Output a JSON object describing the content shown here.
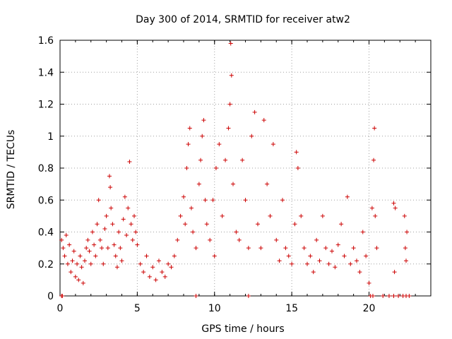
{
  "chart_data": {
    "type": "scatter",
    "title": "Day 300 of 2014, SRMTID for receiver atw2",
    "xlabel": "GPS time / hours",
    "ylabel": "SRMTID / TECUs",
    "xlim": [
      0,
      24
    ],
    "ylim": [
      0,
      1.6
    ],
    "x_ticks": [
      0,
      5,
      10,
      15,
      20
    ],
    "y_ticks": [
      0,
      0.2,
      0.4,
      0.6,
      0.8,
      1,
      1.2,
      1.4,
      1.6
    ],
    "x_tick_labels": [
      "0",
      "5",
      "10",
      "15",
      "20"
    ],
    "y_tick_labels": [
      "0",
      "0.2",
      "0.4",
      "0.6",
      "0.8",
      "1",
      "1.2",
      "1.4",
      "1.6"
    ],
    "grid": true,
    "marker": "+",
    "color": "#cc0000",
    "series": [
      {
        "name": "SRMTID",
        "points": [
          [
            0.1,
            0.35
          ],
          [
            0.2,
            0.3
          ],
          [
            0.3,
            0.25
          ],
          [
            0.4,
            0.38
          ],
          [
            0.5,
            0.2
          ],
          [
            0.6,
            0.32
          ],
          [
            0.7,
            0.15
          ],
          [
            0.8,
            0.22
          ],
          [
            0.9,
            0.28
          ],
          [
            1.0,
            0.12
          ],
          [
            1.1,
            0.2
          ],
          [
            1.2,
            0.1
          ],
          [
            1.3,
            0.25
          ],
          [
            1.4,
            0.18
          ],
          [
            1.5,
            0.08
          ],
          [
            1.6,
            0.22
          ],
          [
            1.7,
            0.3
          ],
          [
            1.8,
            0.35
          ],
          [
            1.9,
            0.28
          ],
          [
            2.0,
            0.2
          ],
          [
            2.1,
            0.4
          ],
          [
            2.2,
            0.32
          ],
          [
            2.3,
            0.25
          ],
          [
            2.4,
            0.45
          ],
          [
            2.5,
            0.6
          ],
          [
            2.6,
            0.35
          ],
          [
            2.7,
            0.3
          ],
          [
            2.8,
            0.2
          ],
          [
            2.9,
            0.42
          ],
          [
            3.0,
            0.5
          ],
          [
            3.1,
            0.3
          ],
          [
            3.2,
            0.75
          ],
          [
            3.25,
            0.68
          ],
          [
            3.3,
            0.55
          ],
          [
            3.4,
            0.45
          ],
          [
            3.5,
            0.32
          ],
          [
            3.6,
            0.25
          ],
          [
            3.7,
            0.18
          ],
          [
            3.8,
            0.4
          ],
          [
            3.9,
            0.3
          ],
          [
            4.0,
            0.22
          ],
          [
            4.1,
            0.48
          ],
          [
            4.2,
            0.62
          ],
          [
            4.3,
            0.38
          ],
          [
            4.4,
            0.55
          ],
          [
            4.5,
            0.84
          ],
          [
            4.6,
            0.45
          ],
          [
            4.7,
            0.35
          ],
          [
            4.8,
            0.5
          ],
          [
            4.9,
            0.4
          ],
          [
            5.0,
            0.32
          ],
          [
            5.2,
            0.2
          ],
          [
            5.4,
            0.15
          ],
          [
            5.6,
            0.25
          ],
          [
            5.8,
            0.12
          ],
          [
            6.0,
            0.18
          ],
          [
            6.2,
            0.1
          ],
          [
            6.4,
            0.22
          ],
          [
            6.6,
            0.15
          ],
          [
            6.8,
            0.12
          ],
          [
            7.0,
            0.2
          ],
          [
            7.2,
            0.18
          ],
          [
            7.4,
            0.25
          ],
          [
            7.6,
            0.35
          ],
          [
            7.8,
            0.5
          ],
          [
            8.0,
            0.62
          ],
          [
            8.1,
            0.45
          ],
          [
            8.2,
            0.8
          ],
          [
            8.3,
            0.95
          ],
          [
            8.4,
            1.05
          ],
          [
            8.5,
            0.55
          ],
          [
            8.6,
            0.4
          ],
          [
            8.8,
            0.3
          ],
          [
            9.0,
            0.7
          ],
          [
            9.1,
            0.85
          ],
          [
            9.2,
            1.0
          ],
          [
            9.3,
            1.1
          ],
          [
            9.4,
            0.6
          ],
          [
            9.5,
            0.45
          ],
          [
            9.7,
            0.35
          ],
          [
            9.9,
            0.6
          ],
          [
            10.0,
            0.25
          ],
          [
            10.1,
            0.8
          ],
          [
            10.3,
            0.95
          ],
          [
            10.5,
            0.5
          ],
          [
            10.7,
            0.85
          ],
          [
            10.9,
            1.05
          ],
          [
            11.0,
            1.2
          ],
          [
            11.05,
            1.58
          ],
          [
            11.1,
            1.38
          ],
          [
            11.2,
            0.7
          ],
          [
            11.4,
            0.4
          ],
          [
            11.6,
            0.35
          ],
          [
            11.8,
            0.85
          ],
          [
            12.0,
            0.6
          ],
          [
            12.2,
            0.3
          ],
          [
            12.4,
            1.0
          ],
          [
            12.6,
            1.15
          ],
          [
            12.8,
            0.45
          ],
          [
            13.0,
            0.3
          ],
          [
            13.2,
            1.1
          ],
          [
            13.4,
            0.7
          ],
          [
            13.6,
            0.5
          ],
          [
            13.8,
            0.95
          ],
          [
            14.0,
            0.35
          ],
          [
            14.2,
            0.22
          ],
          [
            14.4,
            0.6
          ],
          [
            14.6,
            0.3
          ],
          [
            14.8,
            0.25
          ],
          [
            15.0,
            0.2
          ],
          [
            15.2,
            0.45
          ],
          [
            15.3,
            0.9
          ],
          [
            15.4,
            0.8
          ],
          [
            15.6,
            0.5
          ],
          [
            15.8,
            0.3
          ],
          [
            16.0,
            0.2
          ],
          [
            16.2,
            0.25
          ],
          [
            16.4,
            0.15
          ],
          [
            16.6,
            0.35
          ],
          [
            16.8,
            0.22
          ],
          [
            17.0,
            0.5
          ],
          [
            17.2,
            0.3
          ],
          [
            17.4,
            0.2
          ],
          [
            17.6,
            0.28
          ],
          [
            17.8,
            0.18
          ],
          [
            18.0,
            0.32
          ],
          [
            18.2,
            0.45
          ],
          [
            18.4,
            0.25
          ],
          [
            18.6,
            0.62
          ],
          [
            18.8,
            0.2
          ],
          [
            19.0,
            0.3
          ],
          [
            19.2,
            0.22
          ],
          [
            19.4,
            0.15
          ],
          [
            19.6,
            0.4
          ],
          [
            19.8,
            0.25
          ],
          [
            20.0,
            0.08
          ],
          [
            20.2,
            0.55
          ],
          [
            20.3,
            0.85
          ],
          [
            20.35,
            1.05
          ],
          [
            20.4,
            0.5
          ],
          [
            20.5,
            0.3
          ],
          [
            21.6,
            0.58
          ],
          [
            21.7,
            0.55
          ],
          [
            21.65,
            0.15
          ],
          [
            22.3,
            0.5
          ],
          [
            22.35,
            0.3
          ],
          [
            22.4,
            0.22
          ],
          [
            22.45,
            0.4
          ],
          [
            0.1,
            0
          ],
          [
            0.15,
            0
          ],
          [
            8.8,
            0
          ],
          [
            12.2,
            0
          ],
          [
            20.1,
            0
          ],
          [
            20.25,
            0
          ],
          [
            20.9,
            0
          ],
          [
            21.3,
            0
          ],
          [
            21.6,
            0
          ],
          [
            21.9,
            0
          ],
          [
            22.2,
            0
          ],
          [
            22.4,
            0
          ],
          [
            22.6,
            0
          ]
        ]
      }
    ]
  }
}
